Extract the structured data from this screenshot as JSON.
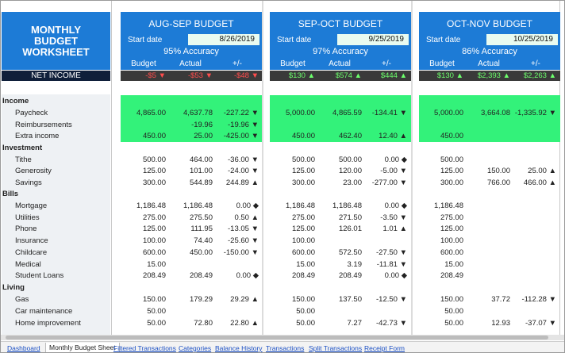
{
  "worksheet": {
    "title": "MONTHLY\nBUDGET\nWORKSHEET",
    "net_income_label": "NET INCOME"
  },
  "colors": {
    "header_blue": "#1d7bd6",
    "net_bar": "#0f1f3a",
    "income_green": "#33f27a"
  },
  "panels": [
    {
      "title": "AUG-SEP BUDGET",
      "start_label": "Start date",
      "start_date": "8/26/2019",
      "accuracy": "95% Accuracy",
      "col_budget": "Budget",
      "col_actual": "Actual",
      "col_diff": "+/-",
      "net_budget": "-$5",
      "net_budget_dir": "down",
      "net_actual": "-$53",
      "net_actual_dir": "down",
      "net_diff": "-$48",
      "net_diff_dir": "down"
    },
    {
      "title": "SEP-OCT BUDGET",
      "start_label": "Start date",
      "start_date": "9/25/2019",
      "accuracy": "97% Accuracy",
      "col_budget": "Budget",
      "col_actual": "Actual",
      "col_diff": "+/-",
      "net_budget": "$130",
      "net_budget_dir": "up",
      "net_actual": "$574",
      "net_actual_dir": "up",
      "net_diff": "$444",
      "net_diff_dir": "up"
    },
    {
      "title": "OCT-NOV BUDGET",
      "start_label": "Start date",
      "start_date": "10/25/2019",
      "accuracy": "86% Accuracy",
      "col_budget": "Budget",
      "col_actual": "Actual",
      "col_diff": "+/-",
      "net_budget": "$130",
      "net_budget_dir": "up",
      "net_actual": "$2,393",
      "net_actual_dir": "up",
      "net_diff": "$2,263",
      "net_diff_dir": "up"
    }
  ],
  "rows": [
    {
      "type": "cat",
      "label": "Income"
    },
    {
      "type": "item",
      "label": "Paycheck",
      "v": [
        [
          "4,865.00",
          "4,637.78",
          "-227.22 ▼"
        ],
        [
          "5,000.00",
          "4,865.59",
          "-134.41 ▼"
        ],
        [
          "5,000.00",
          "3,664.08",
          "-1,335.92 ▼"
        ]
      ]
    },
    {
      "type": "item",
      "label": "Reimbursements",
      "v": [
        [
          "",
          "-19.96",
          "-19.96 ▼"
        ],
        [
          "",
          "",
          ""
        ],
        [
          "",
          "",
          ""
        ]
      ]
    },
    {
      "type": "item",
      "label": "Extra income",
      "v": [
        [
          "450.00",
          "25.00",
          "-425.00 ▼"
        ],
        [
          "450.00",
          "462.40",
          "12.40 ▲"
        ],
        [
          "450.00",
          "",
          ""
        ]
      ]
    },
    {
      "type": "cat",
      "label": "Investment"
    },
    {
      "type": "item",
      "label": "Tithe",
      "v": [
        [
          "500.00",
          "464.00",
          "-36.00 ▼"
        ],
        [
          "500.00",
          "500.00",
          "0.00 ◆"
        ],
        [
          "500.00",
          "",
          ""
        ]
      ]
    },
    {
      "type": "item",
      "label": "Generosity",
      "v": [
        [
          "125.00",
          "101.00",
          "-24.00 ▼"
        ],
        [
          "125.00",
          "120.00",
          "-5.00 ▼"
        ],
        [
          "125.00",
          "150.00",
          "25.00 ▲"
        ]
      ]
    },
    {
      "type": "item",
      "label": "Savings",
      "v": [
        [
          "300.00",
          "544.89",
          "244.89 ▲"
        ],
        [
          "300.00",
          "23.00",
          "-277.00 ▼"
        ],
        [
          "300.00",
          "766.00",
          "466.00 ▲"
        ]
      ]
    },
    {
      "type": "cat",
      "label": "Bills"
    },
    {
      "type": "item",
      "label": "Mortgage",
      "v": [
        [
          "1,186.48",
          "1,186.48",
          "0.00 ◆"
        ],
        [
          "1,186.48",
          "1,186.48",
          "0.00 ◆"
        ],
        [
          "1,186.48",
          "",
          ""
        ]
      ]
    },
    {
      "type": "item",
      "label": "Utilities",
      "v": [
        [
          "275.00",
          "275.50",
          "0.50 ▲"
        ],
        [
          "275.00",
          "271.50",
          "-3.50 ▼"
        ],
        [
          "275.00",
          "",
          ""
        ]
      ]
    },
    {
      "type": "item",
      "label": "Phone",
      "v": [
        [
          "125.00",
          "111.95",
          "-13.05 ▼"
        ],
        [
          "125.00",
          "126.01",
          "1.01 ▲"
        ],
        [
          "125.00",
          "",
          ""
        ]
      ]
    },
    {
      "type": "item",
      "label": "Insurance",
      "v": [
        [
          "100.00",
          "74.40",
          "-25.60 ▼"
        ],
        [
          "100.00",
          "",
          ""
        ],
        [
          "100.00",
          "",
          ""
        ]
      ]
    },
    {
      "type": "item",
      "label": "Childcare",
      "v": [
        [
          "600.00",
          "450.00",
          "-150.00 ▼"
        ],
        [
          "600.00",
          "572.50",
          "-27.50 ▼"
        ],
        [
          "600.00",
          "",
          ""
        ]
      ]
    },
    {
      "type": "item",
      "label": "Medical",
      "v": [
        [
          "15.00",
          "",
          ""
        ],
        [
          "15.00",
          "3.19",
          "-11.81 ▼"
        ],
        [
          "15.00",
          "",
          ""
        ]
      ]
    },
    {
      "type": "item",
      "label": "Student Loans",
      "v": [
        [
          "208.49",
          "208.49",
          "0.00 ◆"
        ],
        [
          "208.49",
          "208.49",
          "0.00 ◆"
        ],
        [
          "208.49",
          "",
          ""
        ]
      ]
    },
    {
      "type": "cat",
      "label": "Living"
    },
    {
      "type": "item",
      "label": "Gas",
      "v": [
        [
          "150.00",
          "179.29",
          "29.29 ▲"
        ],
        [
          "150.00",
          "137.50",
          "-12.50 ▼"
        ],
        [
          "150.00",
          "37.72",
          "-112.28 ▼"
        ]
      ]
    },
    {
      "type": "item",
      "label": "Car maintenance",
      "v": [
        [
          "50.00",
          "",
          ""
        ],
        [
          "50.00",
          "",
          ""
        ],
        [
          "50.00",
          "",
          ""
        ]
      ]
    },
    {
      "type": "item",
      "label": "Home improvement",
      "v": [
        [
          "50.00",
          "72.80",
          "22.80 ▲"
        ],
        [
          "50.00",
          "7.27",
          "-42.73 ▼"
        ],
        [
          "50.00",
          "12.93",
          "-37.07 ▼"
        ]
      ]
    }
  ],
  "tabs": [
    "Dashboard",
    "Monthly Budget Sheet",
    "Filtered Transactions",
    "Categories",
    "Balance History",
    "Transactions",
    "Split Transactions",
    "Receipt Form"
  ],
  "active_tab": "Monthly Budget Sheet"
}
